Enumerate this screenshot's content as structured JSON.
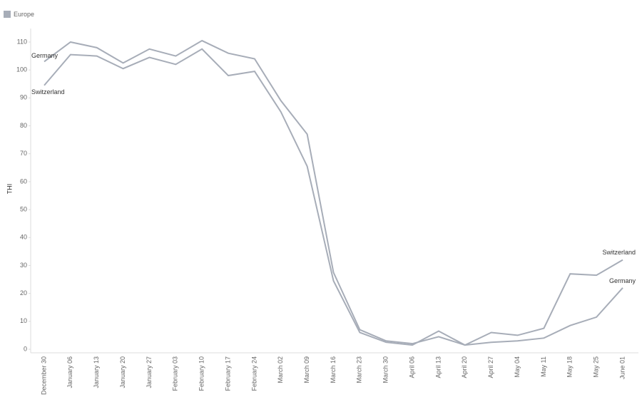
{
  "chart_data": {
    "type": "line",
    "legend_title": "Europe",
    "y_label": "THI",
    "categories": [
      "December 30",
      "January 06",
      "January 13",
      "January 20",
      "January 27",
      "February 03",
      "February 10",
      "February 17",
      "February 24",
      "March 02",
      "March 09",
      "March 16",
      "March 23",
      "March 30",
      "April 06",
      "April 13",
      "April 20",
      "April 27",
      "May 04",
      "May 11",
      "May 18",
      "May 25",
      "June 01"
    ],
    "series": [
      {
        "name": "Germany",
        "color": "#a7adb8",
        "values": [
          103,
          110,
          108,
          102.5,
          107.5,
          105,
          110.5,
          106,
          104,
          89,
          77,
          27.5,
          7,
          3,
          2,
          4.5,
          1.5,
          2.5,
          3,
          4,
          8.5,
          11.5,
          22
        ]
      },
      {
        "name": "Switzerland",
        "color": "#a7adb8",
        "values": [
          94.5,
          105.5,
          105,
          100.5,
          104.5,
          102,
          107.5,
          98,
          99.5,
          85,
          65.5,
          24.5,
          6,
          2.5,
          1.5,
          6.5,
          1.5,
          6,
          5,
          7.5,
          27,
          26.5,
          32
        ]
      }
    ],
    "ylim": [
      0,
      110
    ],
    "yticks": [
      0,
      10,
      20,
      30,
      40,
      50,
      60,
      70,
      80,
      90,
      100,
      110
    ],
    "grid": false
  }
}
